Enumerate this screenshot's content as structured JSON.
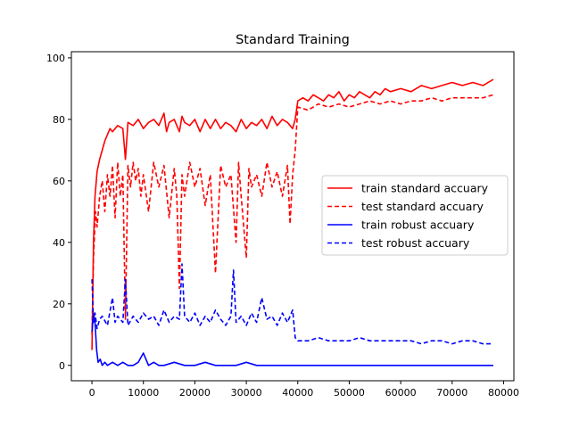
{
  "chart_data": {
    "type": "line",
    "title": "Standard Training",
    "xlabel": "",
    "ylabel": "",
    "xlim": [
      -4000,
      82000
    ],
    "ylim": [
      -5,
      102
    ],
    "xticks": [
      0,
      10000,
      20000,
      30000,
      40000,
      50000,
      60000,
      70000,
      80000
    ],
    "xtick_labels": [
      "0",
      "10000",
      "20000",
      "30000",
      "40000",
      "50000",
      "60000",
      "70000",
      "80000"
    ],
    "yticks": [
      0,
      20,
      40,
      60,
      80,
      100
    ],
    "ytick_labels": [
      "0",
      "20",
      "40",
      "60",
      "80",
      "100"
    ],
    "grid": false,
    "legend_position": "center-right",
    "series": [
      {
        "name": "train standard accuary",
        "color": "#ff0000",
        "style": "solid",
        "x": [
          0,
          300,
          600,
          1000,
          1500,
          2000,
          2500,
          3000,
          3500,
          4000,
          5000,
          6000,
          6500,
          7000,
          8000,
          9000,
          10000,
          11000,
          12000,
          13000,
          14000,
          14500,
          15000,
          16000,
          17000,
          17500,
          18000,
          19000,
          20000,
          21000,
          22000,
          23000,
          24000,
          25000,
          26000,
          27000,
          28000,
          29000,
          30000,
          31000,
          32000,
          33000,
          34000,
          35000,
          36000,
          37000,
          38000,
          39000,
          39500,
          40000,
          41000,
          42000,
          43000,
          44000,
          45000,
          46000,
          47000,
          48000,
          49000,
          50000,
          51000,
          52000,
          53000,
          54000,
          55000,
          56000,
          57000,
          58000,
          60000,
          62000,
          64000,
          66000,
          68000,
          70000,
          72000,
          74000,
          76000,
          78000
        ],
        "y": [
          5,
          40,
          55,
          63,
          67,
          70,
          73,
          75,
          77,
          76,
          78,
          77,
          67,
          79,
          78,
          80,
          77,
          79,
          80,
          78,
          82,
          76,
          79,
          80,
          76,
          81,
          79,
          78,
          80,
          76,
          80,
          77,
          80,
          77,
          79,
          78,
          76,
          80,
          77,
          79,
          78,
          80,
          77,
          81,
          78,
          80,
          79,
          77,
          80,
          86,
          87,
          86,
          88,
          87,
          86,
          88,
          87,
          89,
          86,
          88,
          87,
          89,
          88,
          87,
          89,
          88,
          90,
          89,
          90,
          89,
          91,
          90,
          91,
          92,
          91,
          92,
          91,
          93
        ]
      },
      {
        "name": "test standard accuary",
        "color": "#ff0000",
        "style": "dashed",
        "x": [
          0,
          300,
          700,
          1000,
          1500,
          2000,
          2500,
          3000,
          3500,
          4000,
          4500,
          5000,
          5500,
          6000,
          6500,
          7000,
          7500,
          8000,
          8500,
          9000,
          9500,
          10000,
          11000,
          12000,
          13000,
          14000,
          15000,
          16000,
          16500,
          17000,
          17500,
          18000,
          19000,
          20000,
          21000,
          22000,
          23000,
          24000,
          25000,
          26000,
          27000,
          28000,
          28500,
          29000,
          30000,
          30500,
          31000,
          32000,
          33000,
          34000,
          35000,
          36000,
          37000,
          38000,
          38500,
          39000,
          39500,
          40000,
          42000,
          44000,
          46000,
          48000,
          50000,
          52000,
          54000,
          56000,
          58000,
          60000,
          62000,
          64000,
          66000,
          68000,
          70000,
          72000,
          74000,
          76000,
          78000
        ],
        "y": [
          10,
          35,
          50,
          45,
          55,
          60,
          50,
          62,
          55,
          65,
          48,
          66,
          55,
          62,
          15,
          65,
          58,
          66,
          60,
          64,
          55,
          62,
          50,
          66,
          58,
          65,
          48,
          64,
          55,
          25,
          62,
          55,
          66,
          58,
          64,
          52,
          62,
          30,
          65,
          58,
          62,
          40,
          66,
          55,
          35,
          64,
          58,
          62,
          55,
          66,
          58,
          63,
          55,
          65,
          46,
          62,
          70,
          84,
          83,
          85,
          84,
          85,
          84,
          85,
          86,
          85,
          86,
          85,
          86,
          86,
          87,
          86,
          87,
          87,
          87,
          87,
          88
        ]
      },
      {
        "name": "train robust accuary",
        "color": "#0000ff",
        "style": "solid",
        "x": [
          0,
          300,
          600,
          900,
          1200,
          1600,
          2000,
          2500,
          3000,
          4000,
          5000,
          6000,
          7000,
          8000,
          9000,
          10000,
          11000,
          12000,
          13000,
          14000,
          16000,
          18000,
          20000,
          22000,
          24000,
          26000,
          28000,
          30000,
          32000,
          34000,
          36000,
          38000,
          40000,
          50000,
          60000,
          70000,
          78000
        ],
        "y": [
          11,
          17,
          14,
          5,
          1,
          2,
          0,
          1,
          0,
          1,
          0,
          1,
          0,
          0,
          1,
          4,
          0,
          1,
          0,
          0,
          1,
          0,
          0,
          1,
          0,
          0,
          0,
          1,
          0,
          0,
          0,
          0,
          0,
          0,
          0,
          0,
          0
        ]
      },
      {
        "name": "test robust accuary",
        "color": "#0000ff",
        "style": "dashed",
        "x": [
          0,
          300,
          600,
          1000,
          1500,
          2000,
          3000,
          4000,
          4500,
          5000,
          6000,
          6500,
          7000,
          8000,
          9000,
          10000,
          11000,
          12000,
          13000,
          14000,
          15000,
          16000,
          17000,
          17500,
          18000,
          19000,
          20000,
          21000,
          22000,
          23000,
          24000,
          25000,
          26000,
          27000,
          27500,
          28000,
          29000,
          30000,
          31000,
          32000,
          33000,
          34000,
          35000,
          36000,
          37000,
          38000,
          39000,
          39500,
          40000,
          42000,
          44000,
          46000,
          48000,
          50000,
          52000,
          54000,
          56000,
          58000,
          60000,
          62000,
          64000,
          66000,
          68000,
          70000,
          72000,
          74000,
          76000,
          78000
        ],
        "y": [
          28,
          14,
          17,
          12,
          15,
          16,
          13,
          22,
          14,
          16,
          14,
          28,
          13,
          16,
          14,
          17,
          15,
          16,
          13,
          18,
          14,
          16,
          15,
          33,
          16,
          14,
          17,
          13,
          16,
          14,
          18,
          15,
          13,
          16,
          31,
          14,
          16,
          13,
          17,
          14,
          22,
          15,
          16,
          13,
          17,
          14,
          18,
          9,
          8,
          8,
          9,
          8,
          8,
          8,
          9,
          8,
          8,
          8,
          8,
          8,
          7,
          8,
          8,
          7,
          8,
          8,
          7,
          7
        ]
      }
    ]
  }
}
